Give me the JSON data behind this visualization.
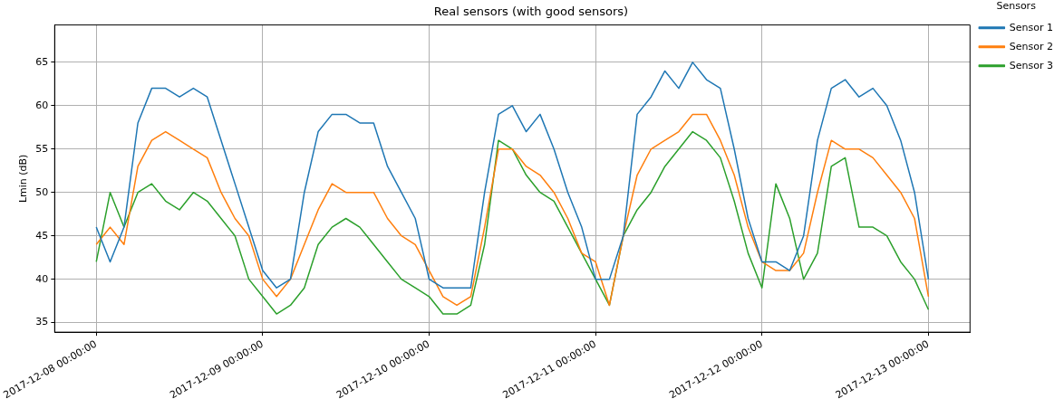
{
  "chart_data": {
    "type": "line",
    "title": "Real sensors (with good sensors)",
    "ylabel": "Lmin (dB)",
    "legend_title": "Sensors",
    "legend": "top right",
    "grid": true,
    "marker": "none",
    "line_style": "solid",
    "x": [
      "2017-12-08T00:00",
      "2017-12-08T02:00",
      "2017-12-08T04:00",
      "2017-12-08T06:00",
      "2017-12-08T08:00",
      "2017-12-08T10:00",
      "2017-12-08T12:00",
      "2017-12-08T14:00",
      "2017-12-08T16:00",
      "2017-12-08T18:00",
      "2017-12-08T20:00",
      "2017-12-08T22:00",
      "2017-12-09T00:00",
      "2017-12-09T02:00",
      "2017-12-09T04:00",
      "2017-12-09T06:00",
      "2017-12-09T08:00",
      "2017-12-09T10:00",
      "2017-12-09T12:00",
      "2017-12-09T14:00",
      "2017-12-09T16:00",
      "2017-12-09T18:00",
      "2017-12-09T20:00",
      "2017-12-09T22:00",
      "2017-12-10T00:00",
      "2017-12-10T02:00",
      "2017-12-10T04:00",
      "2017-12-10T06:00",
      "2017-12-10T08:00",
      "2017-12-10T10:00",
      "2017-12-10T12:00",
      "2017-12-10T14:00",
      "2017-12-10T16:00",
      "2017-12-10T18:00",
      "2017-12-10T20:00",
      "2017-12-10T22:00",
      "2017-12-11T00:00",
      "2017-12-11T02:00",
      "2017-12-11T04:00",
      "2017-12-11T06:00",
      "2017-12-11T08:00",
      "2017-12-11T10:00",
      "2017-12-11T12:00",
      "2017-12-11T14:00",
      "2017-12-11T16:00",
      "2017-12-11T18:00",
      "2017-12-11T20:00",
      "2017-12-11T22:00",
      "2017-12-12T00:00",
      "2017-12-12T02:00",
      "2017-12-12T04:00",
      "2017-12-12T06:00",
      "2017-12-12T08:00",
      "2017-12-12T10:00",
      "2017-12-12T12:00",
      "2017-12-12T14:00",
      "2017-12-12T16:00",
      "2017-12-12T18:00",
      "2017-12-12T20:00",
      "2017-12-12T22:00",
      "2017-12-13T00:00"
    ],
    "series": [
      {
        "name": "Sensor 1",
        "color": "#1f77b4",
        "values": [
          46,
          42,
          46,
          58,
          62,
          62,
          61,
          62,
          61,
          56,
          51,
          46,
          41,
          39,
          40,
          50,
          57,
          59,
          59,
          58,
          58,
          53,
          50,
          47,
          40,
          39,
          39,
          39,
          50,
          59,
          60,
          57,
          59,
          55,
          50,
          46,
          40,
          40,
          45,
          59,
          61,
          64,
          62,
          65,
          63,
          62,
          55,
          47,
          42,
          42,
          41,
          45,
          56,
          62,
          63,
          61,
          62,
          60,
          56,
          50,
          40
        ]
      },
      {
        "name": "Sensor 2",
        "color": "#ff7f0e",
        "values": [
          44,
          46,
          44,
          53,
          56,
          57,
          56,
          55,
          54,
          50,
          47,
          45,
          40,
          38,
          40,
          44,
          48,
          51,
          50,
          50,
          50,
          47,
          45,
          44,
          41,
          38,
          37,
          38,
          46,
          55,
          55,
          53,
          52,
          50,
          47,
          43,
          42,
          37,
          45,
          52,
          55,
          56,
          57,
          59,
          59,
          56,
          52,
          46,
          42,
          41,
          41,
          43,
          50,
          56,
          55,
          55,
          54,
          52,
          50,
          47,
          38
        ]
      },
      {
        "name": "Sensor 3",
        "color": "#2ca02c",
        "values": [
          42,
          50,
          46,
          50,
          51,
          49,
          48,
          50,
          49,
          47,
          45,
          40,
          38,
          36,
          37,
          39,
          44,
          46,
          47,
          46,
          44,
          42,
          40,
          39,
          38,
          36,
          36,
          37,
          44,
          56,
          55,
          52,
          50,
          49,
          46,
          43,
          40,
          37,
          45,
          48,
          50,
          53,
          55,
          57,
          56,
          54,
          49,
          43,
          39,
          51,
          47,
          40,
          43,
          53,
          54,
          46,
          46,
          45,
          42,
          40,
          36.5
        ]
      }
    ],
    "xlim": [
      "2017-12-07T18:00",
      "2017-12-13T06:00"
    ],
    "xticks": [
      {
        "value": "2017-12-08",
        "label": "2017-12-08 00:00:00"
      },
      {
        "value": "2017-12-09",
        "label": "2017-12-09 00:00:00"
      },
      {
        "value": "2017-12-10",
        "label": "2017-12-10 00:00:00"
      },
      {
        "value": "2017-12-11",
        "label": "2017-12-11 00:00:00"
      },
      {
        "value": "2017-12-12",
        "label": "2017-12-12 00:00:00"
      },
      {
        "value": "2017-12-13",
        "label": "2017-12-13 00:00:00"
      }
    ],
    "ylim": [
      33.9,
      69.3
    ],
    "yticks": [
      35,
      40,
      45,
      50,
      55,
      60,
      65
    ]
  }
}
